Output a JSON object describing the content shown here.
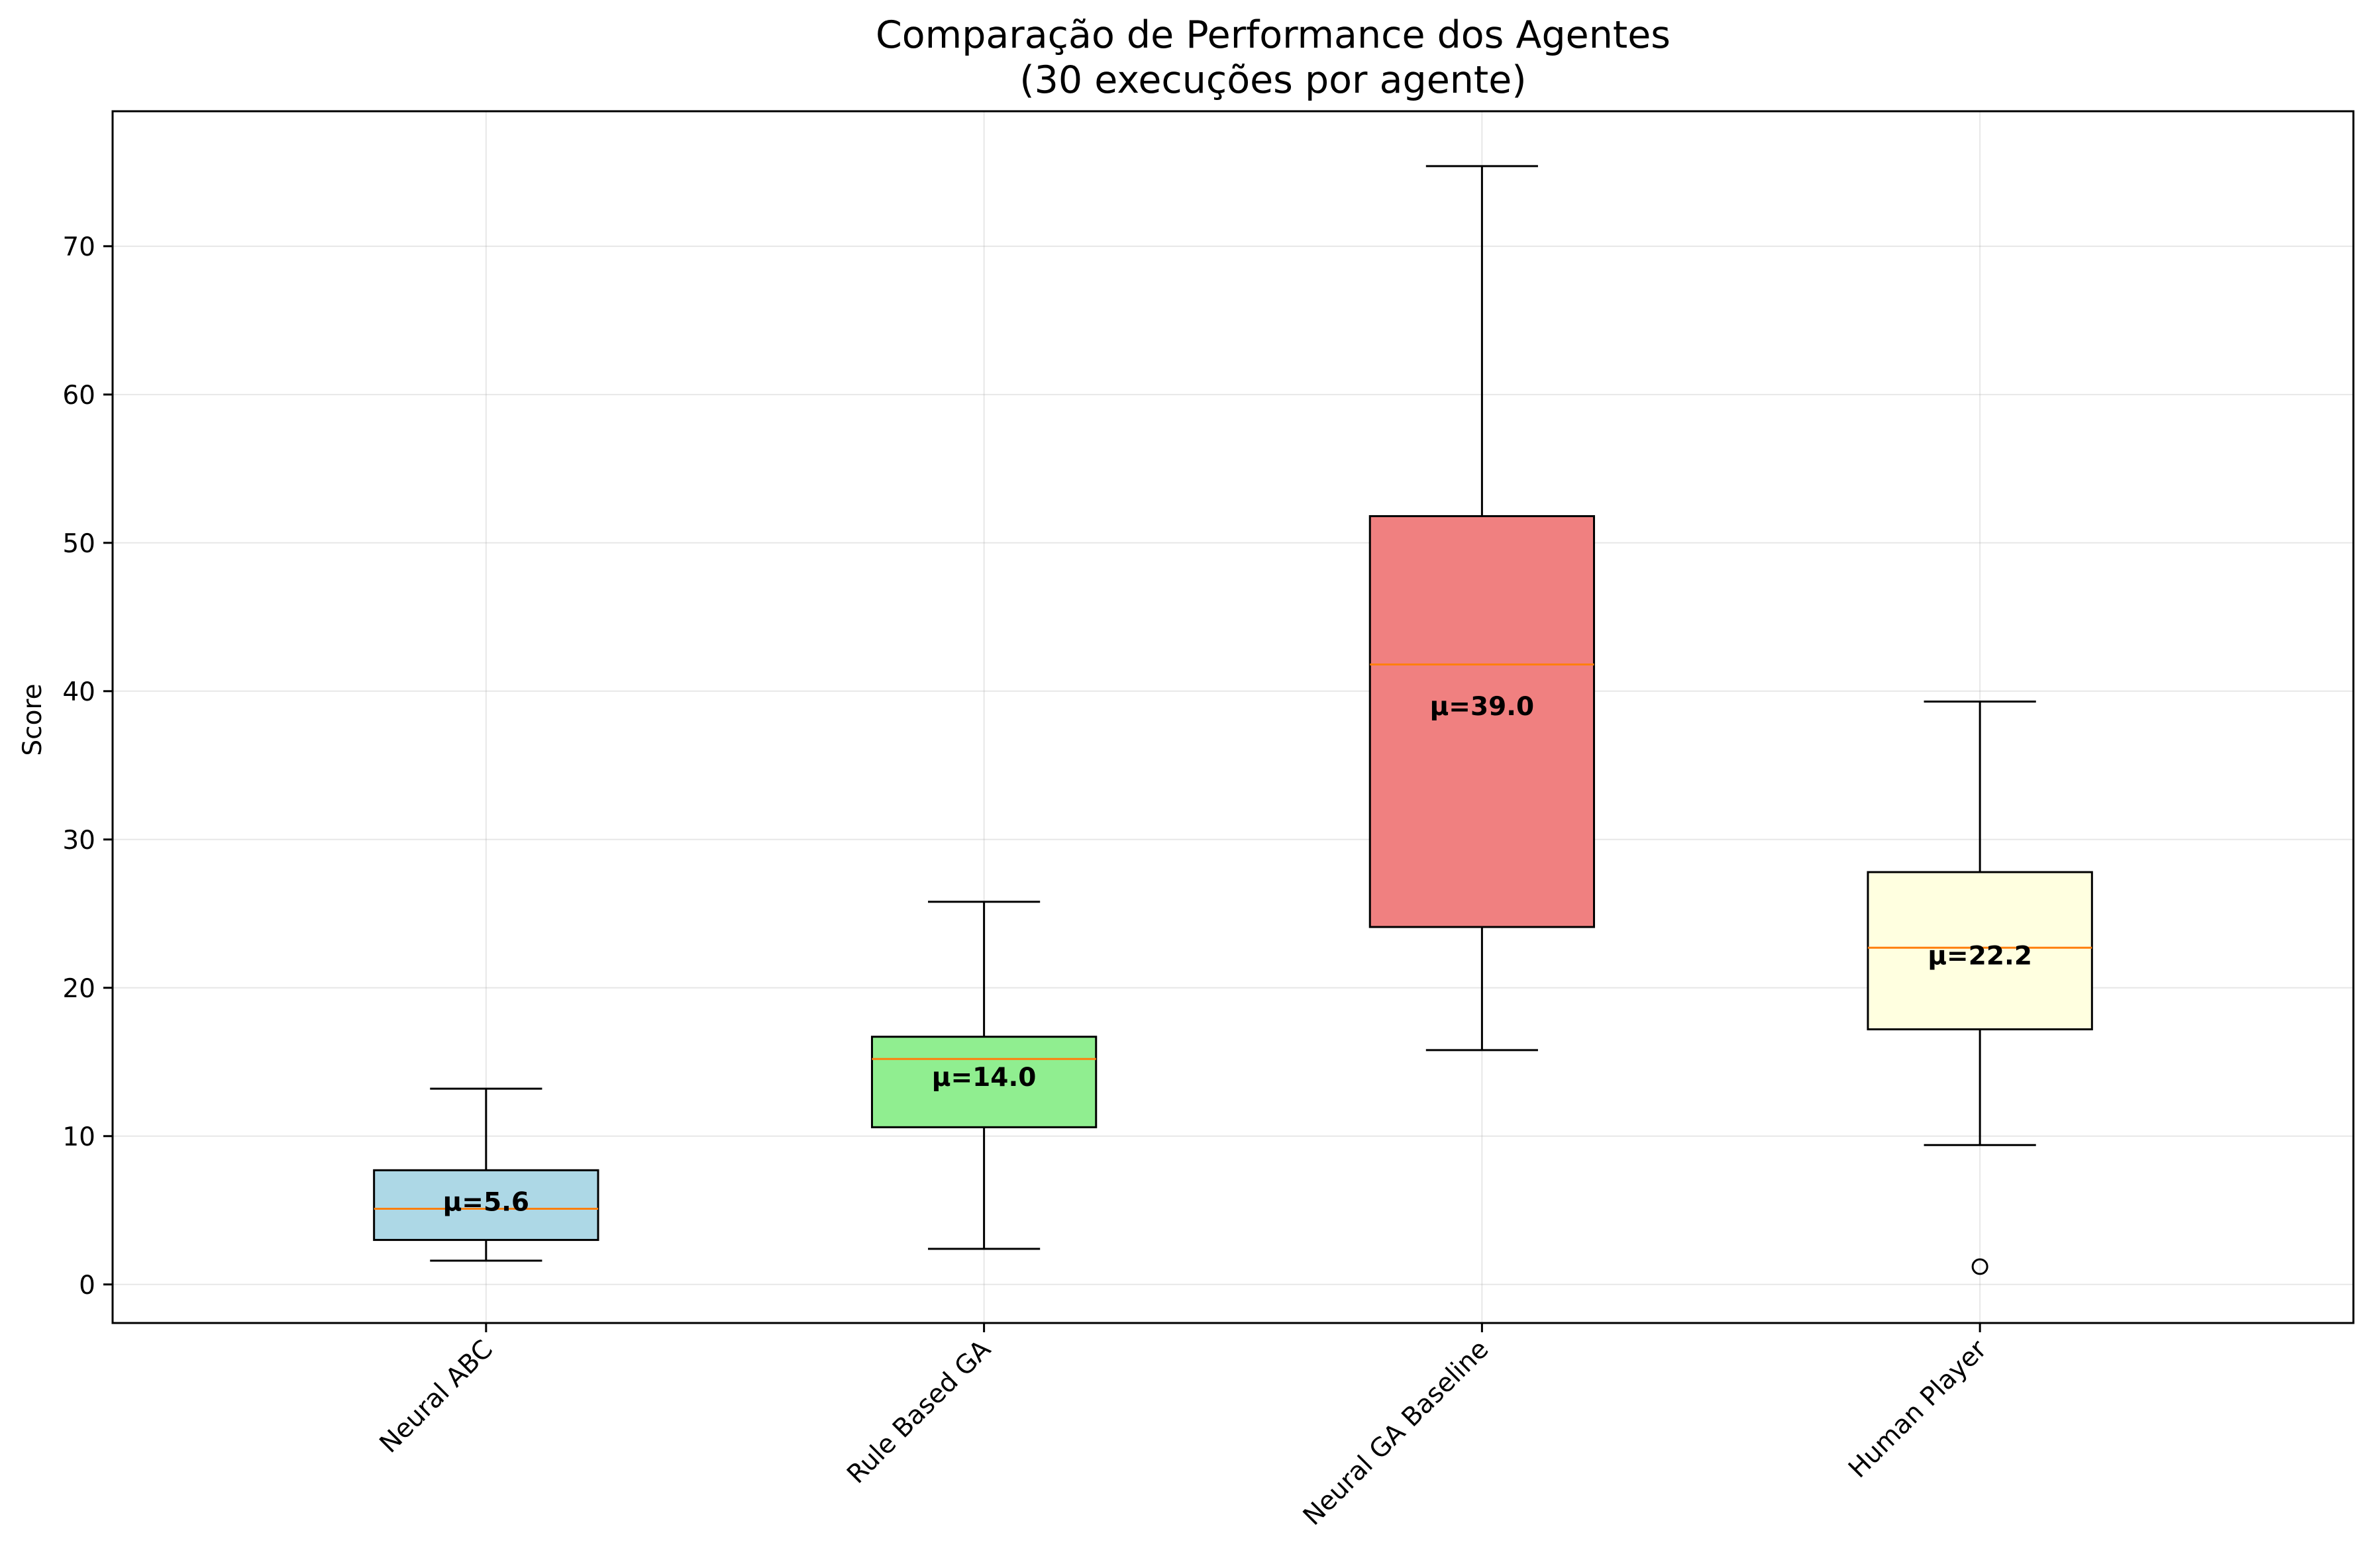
{
  "chart_data": {
    "type": "box",
    "title": "Comparação de Performance dos Agentes",
    "subtitle": "(30 execuções por agente)",
    "xlabel": "",
    "ylabel": "Score",
    "ylim": [
      -2.6,
      79.1
    ],
    "yticks": [
      "0",
      "10",
      "20",
      "30",
      "40",
      "50",
      "60",
      "70"
    ],
    "grid": true,
    "categories": [
      "Neural ABC",
      "Rule Based GA",
      "Neural GA Baseline",
      "Human Player"
    ],
    "boxes": [
      {
        "label": "Neural ABC",
        "whisker_low": 1.6,
        "q1": 3.0,
        "median": 5.1,
        "q3": 7.7,
        "whisker_high": 13.2,
        "mean_label": "μ=5.6",
        "mean": 5.6,
        "outliers": [],
        "color": "#add8e6"
      },
      {
        "label": "Rule Based GA",
        "whisker_low": 2.4,
        "q1": 10.6,
        "median": 15.2,
        "q3": 16.7,
        "whisker_high": 25.8,
        "mean_label": "μ=14.0",
        "mean": 14.0,
        "outliers": [],
        "color": "#90ee90"
      },
      {
        "label": "Neural GA Baseline",
        "whisker_low": 15.8,
        "q1": 24.1,
        "median": 41.8,
        "q3": 51.8,
        "whisker_high": 75.4,
        "mean_label": "μ=39.0",
        "mean": 39.0,
        "outliers": [],
        "color": "#f08080"
      },
      {
        "label": "Human Player",
        "whisker_low": 9.4,
        "q1": 17.2,
        "median": 22.7,
        "q3": 27.8,
        "whisker_high": 39.3,
        "mean_label": "μ=22.2",
        "mean": 22.2,
        "outliers": [
          1.2
        ],
        "color": "#ffffe0"
      }
    ],
    "median_color": "#ff7f0e"
  }
}
